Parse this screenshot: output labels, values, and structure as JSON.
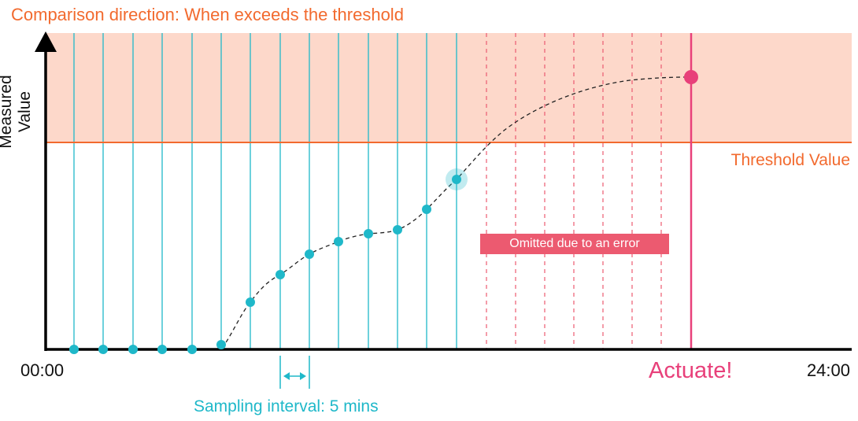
{
  "title": "Comparison direction: When exceeds the threshold",
  "y_axis_label": "Measured Value",
  "threshold_label": "Threshold Value",
  "error_label": "Omitted due to an error",
  "x_start_label": "00:00",
  "x_end_label": "24:00",
  "actuate_label": "Actuate!",
  "sampling_label": "Sampling interval: 5 mins",
  "colors": {
    "threshold": "#f26a2e",
    "zone": "#fdd8ca",
    "sample": "#1fb8c9",
    "error": "#ec5a70",
    "actuate": "#e8407a"
  }
}
